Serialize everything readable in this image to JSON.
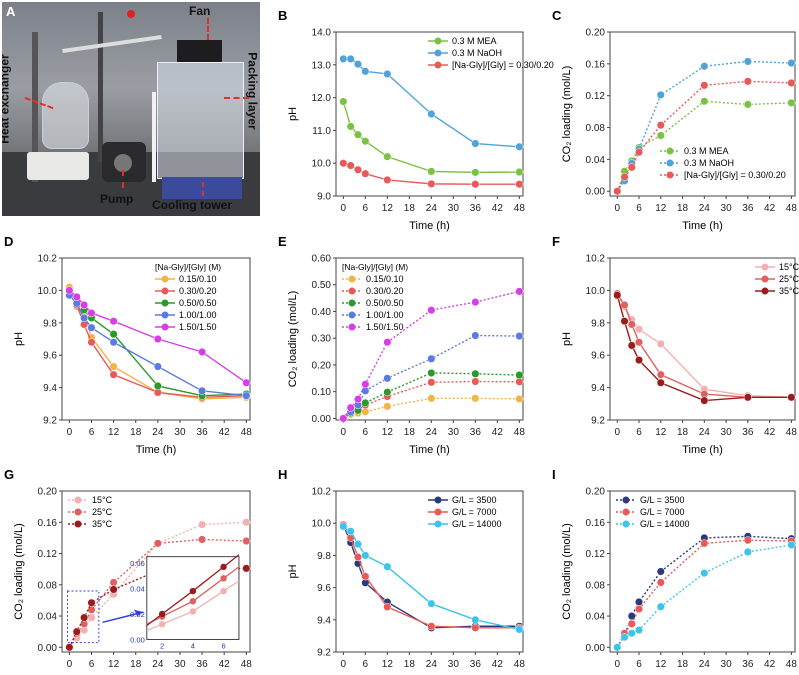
{
  "panel_a": {
    "label": "A",
    "annotations": {
      "heat_exchanger": "Heat exchanger",
      "fan": "Fan",
      "packing_layer": "Packing layer",
      "pump": "Pump",
      "cooling_tower": "Cooling tower"
    },
    "annotation_color": "#e0302a"
  },
  "chart_data": [
    {
      "panel": "B",
      "type": "line",
      "line_style": "solid",
      "xlabel": "Time (h)",
      "ylabel": "pH",
      "x": [
        0,
        2,
        4,
        6,
        12,
        24,
        36,
        48
      ],
      "xticks": [
        0,
        6,
        12,
        18,
        24,
        30,
        36,
        42,
        48
      ],
      "xlim": [
        -2,
        49
      ],
      "ylim": [
        9,
        14
      ],
      "yticks": [
        9.0,
        10.0,
        11.0,
        12.0,
        13.0,
        14.0
      ],
      "ydec": 1,
      "legend": "top-right",
      "legend_title": "",
      "series": [
        {
          "name": "0.3 M MEA",
          "color": "#7cc242",
          "values": [
            11.88,
            11.12,
            10.87,
            10.67,
            10.2,
            9.75,
            9.72,
            9.73
          ]
        },
        {
          "name": "0.3 M NaOH",
          "color": "#4fa3d9",
          "values": [
            13.18,
            13.18,
            13.02,
            12.8,
            12.72,
            11.5,
            10.6,
            10.5
          ]
        },
        {
          "name": "[Na-Gly]/[Gly] = 0.30/0.20",
          "color": "#e85a5a",
          "values": [
            10.0,
            9.93,
            9.8,
            9.68,
            9.49,
            9.37,
            9.36,
            9.36
          ]
        }
      ]
    },
    {
      "panel": "C",
      "type": "line",
      "line_style": "dotted",
      "xlabel": "Time (h)",
      "ylabel": "CO₂ loading (mol/L)",
      "x": [
        0,
        2,
        4,
        6,
        12,
        24,
        36,
        48
      ],
      "xticks": [
        0,
        6,
        12,
        18,
        24,
        30,
        36,
        42,
        48
      ],
      "xlim": [
        -2,
        49
      ],
      "ylim": [
        -0.006,
        0.2
      ],
      "yticks": [
        0.0,
        0.04,
        0.08,
        0.12,
        0.16,
        0.2
      ],
      "ydec": 2,
      "legend": "bottom-right",
      "legend_title": "",
      "series": [
        {
          "name": "0.3 M MEA",
          "color": "#7cc242",
          "values": [
            0,
            0.025,
            0.038,
            0.055,
            0.07,
            0.113,
            0.109,
            0.111
          ]
        },
        {
          "name": "0.3 M NaOH",
          "color": "#4fa3d9",
          "values": [
            0,
            0.013,
            0.035,
            0.053,
            0.121,
            0.157,
            0.163,
            0.161
          ]
        },
        {
          "name": "[Na-Gly]/[Gly] = 0.30/0.20",
          "color": "#e85a5a",
          "values": [
            0,
            0.018,
            0.03,
            0.049,
            0.083,
            0.133,
            0.138,
            0.136
          ]
        }
      ]
    },
    {
      "panel": "D",
      "type": "line",
      "line_style": "solid",
      "xlabel": "Time (h)",
      "ylabel": "pH",
      "x": [
        0,
        2,
        4,
        6,
        12,
        24,
        36,
        48
      ],
      "xticks": [
        0,
        6,
        12,
        18,
        24,
        30,
        36,
        42,
        48
      ],
      "xlim": [
        -2,
        49
      ],
      "ylim": [
        9.2,
        10.2
      ],
      "yticks": [
        9.2,
        9.4,
        9.6,
        9.8,
        10.0,
        10.2
      ],
      "ydec": 1,
      "legend": "top-right",
      "legend_title": "[Na-Gly]/[Gly] (M)",
      "series": [
        {
          "name": "0.15/0.10",
          "color": "#f0b44a",
          "values": [
            10.02,
            9.9,
            9.85,
            9.71,
            9.53,
            9.37,
            9.33,
            9.34
          ]
        },
        {
          "name": "0.30/0.20",
          "color": "#e85a5a",
          "values": [
            10.0,
            9.91,
            9.79,
            9.68,
            9.48,
            9.37,
            9.34,
            9.35
          ]
        },
        {
          "name": "0.50/0.50",
          "color": "#2a9a2a",
          "values": [
            10.0,
            9.95,
            9.88,
            9.83,
            9.73,
            9.41,
            9.35,
            9.36
          ]
        },
        {
          "name": "1.00/1.00",
          "color": "#5b7be0",
          "values": [
            9.97,
            9.92,
            9.83,
            9.77,
            9.68,
            9.53,
            9.38,
            9.35
          ]
        },
        {
          "name": "1.50/1.50",
          "color": "#d83ee8",
          "values": [
            10.0,
            9.96,
            9.91,
            9.86,
            9.81,
            9.7,
            9.62,
            9.43
          ]
        }
      ]
    },
    {
      "panel": "E",
      "type": "line",
      "line_style": "dotted",
      "xlabel": "Time (h)",
      "ylabel": "CO₂ loading (mol/L)",
      "x": [
        0,
        2,
        4,
        6,
        12,
        24,
        36,
        48
      ],
      "xticks": [
        0,
        6,
        12,
        18,
        24,
        30,
        36,
        42,
        48
      ],
      "xlim": [
        -2,
        49
      ],
      "ylim": [
        -0.006,
        0.6
      ],
      "yticks": [
        0.0,
        0.1,
        0.2,
        0.3,
        0.4,
        0.5,
        0.6
      ],
      "ydec": 2,
      "legend": "top-left",
      "legend_title": "[Na-Gly]/[Gly] (M)",
      "series": [
        {
          "name": "0.15/0.10",
          "color": "#f0b44a",
          "values": [
            0,
            0.015,
            0.02,
            0.025,
            0.045,
            0.075,
            0.075,
            0.073
          ]
        },
        {
          "name": "0.30/0.20",
          "color": "#e85a5a",
          "values": [
            0,
            0.02,
            0.03,
            0.05,
            0.082,
            0.135,
            0.138,
            0.137
          ]
        },
        {
          "name": "0.50/0.50",
          "color": "#2a9a2a",
          "values": [
            0,
            0.02,
            0.03,
            0.058,
            0.098,
            0.17,
            0.167,
            0.162
          ]
        },
        {
          "name": "1.00/1.00",
          "color": "#5b7be0",
          "values": [
            0,
            0.025,
            0.05,
            0.103,
            0.15,
            0.223,
            0.31,
            0.308
          ]
        },
        {
          "name": "1.50/1.50",
          "color": "#d83ee8",
          "values": [
            0,
            0.04,
            0.072,
            0.128,
            0.285,
            0.405,
            0.435,
            0.475
          ]
        }
      ]
    },
    {
      "panel": "F",
      "type": "line",
      "line_style": "solid",
      "xlabel": "Time (h)",
      "ylabel": "pH",
      "x": [
        0,
        2,
        4,
        6,
        12,
        24,
        36,
        48
      ],
      "xticks": [
        0,
        6,
        12,
        18,
        24,
        30,
        36,
        42,
        48
      ],
      "xlim": [
        -2,
        49
      ],
      "ylim": [
        9.2,
        10.2
      ],
      "yticks": [
        9.2,
        9.4,
        9.6,
        9.8,
        10.0,
        10.2
      ],
      "ydec": 1,
      "legend": "top-right",
      "legend_title": "",
      "series": [
        {
          "name": "15°C",
          "color": "#f4b0b0",
          "values": [
            9.98,
            9.9,
            9.82,
            9.76,
            9.67,
            9.39,
            9.35,
            9.34
          ]
        },
        {
          "name": "25°C",
          "color": "#e06060",
          "values": [
            9.98,
            9.91,
            9.79,
            9.68,
            9.48,
            9.36,
            9.34,
            9.34
          ]
        },
        {
          "name": "35°C",
          "color": "#9b1c1c",
          "values": [
            9.97,
            9.81,
            9.66,
            9.57,
            9.43,
            9.32,
            9.34,
            9.34
          ]
        }
      ]
    },
    {
      "panel": "G",
      "type": "line",
      "line_style": "dotted",
      "xlabel": "Time (h)",
      "ylabel": "CO₂ loading (mol/L)",
      "x": [
        0,
        2,
        4,
        6,
        12,
        24,
        36,
        48
      ],
      "xticks": [
        0,
        6,
        12,
        18,
        24,
        30,
        36,
        42,
        48
      ],
      "xlim": [
        -2,
        49
      ],
      "ylim": [
        -0.006,
        0.2
      ],
      "yticks": [
        0.0,
        0.04,
        0.08,
        0.12,
        0.16,
        0.2
      ],
      "ydec": 2,
      "legend": "top-left",
      "legend_title": "",
      "series": [
        {
          "name": "15°C",
          "color": "#f4b0b0",
          "values": [
            0,
            0.012,
            0.022,
            0.038,
            0.068,
            0.133,
            0.157,
            0.16
          ]
        },
        {
          "name": "25°C",
          "color": "#e06060",
          "values": [
            0,
            0.018,
            0.03,
            0.048,
            0.083,
            0.133,
            0.138,
            0.136
          ]
        },
        {
          "name": "35°C",
          "color": "#9b1c1c",
          "values": [
            0,
            0.02,
            0.038,
            0.057,
            0.074,
            0.098,
            0.101,
            0.101
          ]
        }
      ],
      "inset": {
        "x": [
          2,
          4,
          6
        ],
        "xlim": [
          1,
          7
        ],
        "xticks": [
          2,
          4,
          6
        ],
        "ylim": [
          0,
          0.065
        ],
        "yticks": [
          0.0,
          0.02,
          0.04,
          0.06
        ],
        "tick_color": "#2233cc",
        "box_color": "#3344dd"
      }
    },
    {
      "panel": "H",
      "type": "line",
      "line_style": "solid",
      "xlabel": "Time (h)",
      "ylabel": "pH",
      "x": [
        0,
        2,
        4,
        6,
        12,
        24,
        36,
        48
      ],
      "xticks": [
        0,
        6,
        12,
        18,
        24,
        30,
        36,
        42,
        48
      ],
      "xlim": [
        -2,
        49
      ],
      "ylim": [
        9.2,
        10.2
      ],
      "yticks": [
        9.2,
        9.4,
        9.6,
        9.8,
        10.0,
        10.2
      ],
      "ydec": 1,
      "legend": "top-right",
      "legend_title": "",
      "series": [
        {
          "name": "G/L = 3500",
          "color": "#2b3a7a",
          "values": [
            9.99,
            9.88,
            9.75,
            9.63,
            9.51,
            9.35,
            9.36,
            9.36
          ]
        },
        {
          "name": "G/L = 7000",
          "color": "#e85a5a",
          "values": [
            9.99,
            9.91,
            9.79,
            9.67,
            9.48,
            9.36,
            9.35,
            9.35
          ]
        },
        {
          "name": "G/L = 14000",
          "color": "#3cc4ec",
          "values": [
            9.98,
            9.95,
            9.87,
            9.8,
            9.73,
            9.5,
            9.4,
            9.34
          ]
        }
      ]
    },
    {
      "panel": "I",
      "type": "line",
      "line_style": "dotted",
      "xlabel": "Time (h)",
      "ylabel": "CO₂ loading (mol/L)",
      "x": [
        0,
        2,
        4,
        6,
        12,
        24,
        36,
        48
      ],
      "xticks": [
        0,
        6,
        12,
        18,
        24,
        30,
        36,
        42,
        48
      ],
      "xlim": [
        -2,
        49
      ],
      "ylim": [
        -0.006,
        0.2
      ],
      "yticks": [
        0.0,
        0.04,
        0.08,
        0.12,
        0.16,
        0.2
      ],
      "ydec": 2,
      "legend": "top-left",
      "legend_title": "",
      "series": [
        {
          "name": "G/L = 3500",
          "color": "#2b3a7a",
          "values": [
            0,
            0.015,
            0.04,
            0.058,
            0.097,
            0.14,
            0.142,
            0.139
          ]
        },
        {
          "name": "G/L = 7000",
          "color": "#e85a5a",
          "values": [
            0,
            0.018,
            0.03,
            0.049,
            0.083,
            0.133,
            0.137,
            0.136
          ]
        },
        {
          "name": "G/L = 14000",
          "color": "#3cc4ec",
          "values": [
            0,
            0.013,
            0.018,
            0.022,
            0.052,
            0.095,
            0.122,
            0.131
          ]
        }
      ]
    }
  ]
}
